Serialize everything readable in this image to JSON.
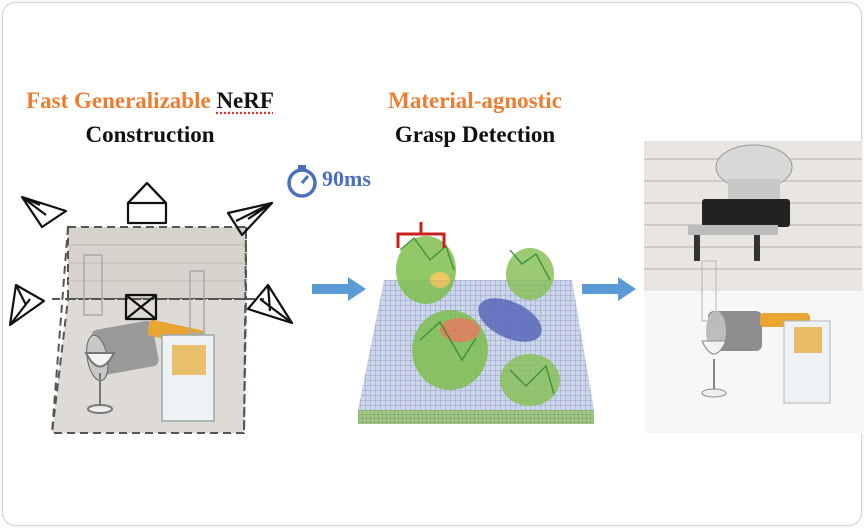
{
  "title_left": {
    "line1_orange": "Fast Generalizable ",
    "line1_black": "NeRF",
    "line2": "Construction"
  },
  "title_mid": {
    "line1": "Material-agnostic",
    "line2": "Grasp Detection"
  },
  "timer": {
    "label": "90ms"
  },
  "colors": {
    "accent_orange": "#ed7d31",
    "accent_blue": "#4a6fbe",
    "arrow_blue": "#5b9bd5"
  }
}
